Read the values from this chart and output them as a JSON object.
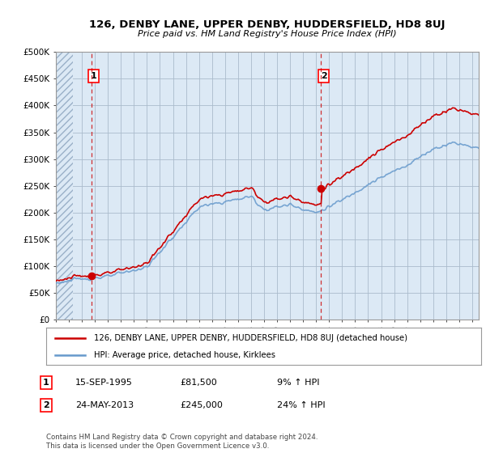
{
  "title": "126, DENBY LANE, UPPER DENBY, HUDDERSFIELD, HD8 8UJ",
  "subtitle": "Price paid vs. HM Land Registry's House Price Index (HPI)",
  "ylim": [
    0,
    500000
  ],
  "yticks": [
    0,
    50000,
    100000,
    150000,
    200000,
    250000,
    300000,
    350000,
    400000,
    450000,
    500000
  ],
  "ytick_labels": [
    "£0",
    "£50K",
    "£100K",
    "£150K",
    "£200K",
    "£250K",
    "£300K",
    "£350K",
    "£400K",
    "£450K",
    "£500K"
  ],
  "bg_color": "#dce9f5",
  "hatch_left_color": "#c8d8e8",
  "grid_color": "#aabbcc",
  "sale1_date": 1995.71,
  "sale1_price": 81500,
  "sale2_date": 2013.39,
  "sale2_price": 245000,
  "legend_line1": "126, DENBY LANE, UPPER DENBY, HUDDERSFIELD, HD8 8UJ (detached house)",
  "legend_line2": "HPI: Average price, detached house, Kirklees",
  "annotation1_date": "15-SEP-1995",
  "annotation1_price": "£81,500",
  "annotation1_hpi": "9% ↑ HPI",
  "annotation2_date": "24-MAY-2013",
  "annotation2_price": "£245,000",
  "annotation2_hpi": "24% ↑ HPI",
  "footer": "Contains HM Land Registry data © Crown copyright and database right 2024.\nThis data is licensed under the Open Government Licence v3.0.",
  "property_color": "#cc0000",
  "hpi_color": "#6699cc",
  "xmin": 1993,
  "xmax": 2025.5
}
